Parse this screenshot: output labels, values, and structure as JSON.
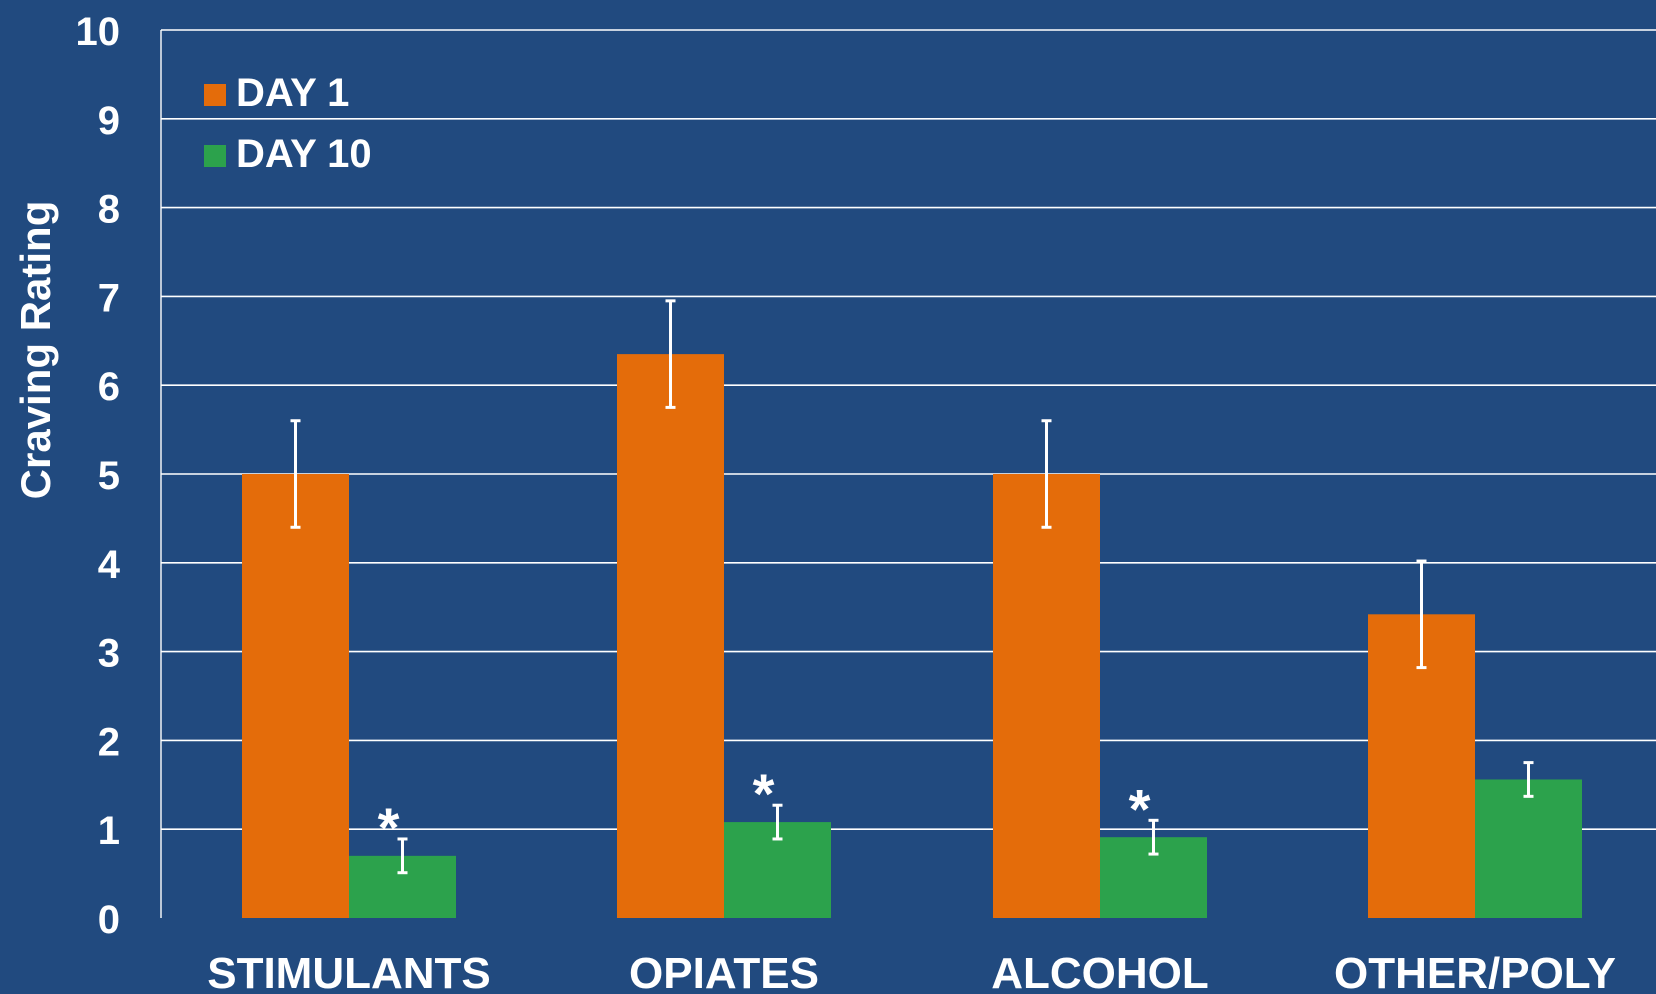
{
  "chart_data": {
    "type": "bar",
    "title": "",
    "xlabel": "",
    "ylabel": "Craving Rating",
    "ylim": [
      0,
      10
    ],
    "yticks": [
      0,
      1,
      2,
      3,
      4,
      5,
      6,
      7,
      8,
      9,
      10
    ],
    "ytick_labels": [
      "0",
      "1",
      "2",
      "3",
      "4",
      "5",
      "6",
      "7",
      "8",
      "9",
      "10"
    ],
    "categories": [
      "STIMULANTS",
      "OPIATES",
      "ALCOHOL",
      "OTHER/POLY"
    ],
    "series": [
      {
        "name": "DAY 1",
        "color": "#e46c0a",
        "values": [
          5.0,
          6.35,
          5.0,
          3.42
        ],
        "error": [
          0.6,
          0.6,
          0.6,
          0.6
        ]
      },
      {
        "name": "DAY 10",
        "color": "#2ca24c",
        "values": [
          0.7,
          1.08,
          0.91,
          1.56
        ],
        "error": [
          0.19,
          0.19,
          0.19,
          0.19
        ]
      }
    ],
    "significance_marker": "*",
    "significant": [
      true,
      true,
      true,
      false
    ],
    "grid": true,
    "legend_position": "top-left",
    "colors": {
      "background": "#214a7f",
      "gridline": "#ffffff",
      "text": "#ffffff",
      "error_bar": "#ffffff"
    }
  }
}
